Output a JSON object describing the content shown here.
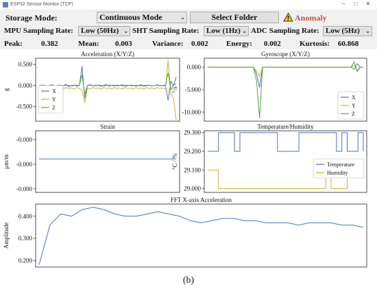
{
  "window": {
    "title": "ESP32 Sensor Monitor (TCP)"
  },
  "controls": {
    "storage_label": "Storage Mode:",
    "storage_value": "Continuous Mode",
    "select_folder": "Select Folder",
    "anomaly_label": "Anomaly",
    "mpu_label": "MPU Sampling Rate:",
    "mpu_value": "Low (50Hz)",
    "sht_label": "SHT Sampling Rate:",
    "sht_value": "Low (1Hz)",
    "adc_label": "ADC Sampling Rate:",
    "adc_value": "Low (5Hz)"
  },
  "stats": {
    "peak_label": "Peak:",
    "peak": "0.382",
    "mean_label": "Mean:",
    "mean": "0.003",
    "variance_label": "Variance:",
    "variance": "0.002",
    "energy_label": "Energy:",
    "energy": "0.002",
    "kurtosis_label": "Kurtosis:",
    "kurtosis": "60.868"
  },
  "colors": {
    "blue": "#4c72b0",
    "yellow": "#ccb22c",
    "green": "#55a24a"
  },
  "caption": "(b)",
  "chart_data": [
    {
      "type": "line",
      "title": "Acceleration (X/Y/Z)",
      "ylabel": "g",
      "ylim": [
        -0.85,
        0.65
      ],
      "yticks": [
        "0.500",
        "0.000",
        "-0.500"
      ],
      "ytick_values": [
        0.5,
        0.0,
        -0.5
      ],
      "legend": [
        "X",
        "Y",
        "Z"
      ],
      "legend_position": "center-left",
      "series": [
        {
          "name": "X",
          "values": [
            0.0,
            -0.02,
            0.01,
            -0.01,
            0.0,
            0.02,
            -0.02,
            0.0,
            0.01,
            -0.01,
            0.03,
            -0.03,
            0.0,
            0.01,
            -0.01,
            0.0,
            0.45,
            -0.3,
            0.0,
            0.02,
            -0.01,
            0.0,
            0.01,
            -0.02,
            0.0,
            0.02,
            -0.01,
            0.0,
            0.01,
            -0.01,
            0.0,
            0.02,
            -0.02,
            0.0,
            0.01,
            0.0,
            -0.01,
            0.0,
            0.02,
            -0.02,
            0.0,
            0.01,
            -0.01,
            0.0,
            0.02,
            -0.01,
            0.0,
            0.01,
            -0.35,
            0.1,
            0.0,
            0.2
          ]
        },
        {
          "name": "Y",
          "values": [
            -0.06,
            -0.08,
            -0.05,
            -0.07,
            -0.06,
            -0.09,
            -0.05,
            -0.07,
            -0.06,
            -0.08,
            -0.05,
            -0.07,
            -0.06,
            -0.08,
            -0.05,
            -0.07,
            -0.12,
            -0.4,
            -0.06,
            -0.08,
            -0.05,
            -0.07,
            -0.06,
            -0.09,
            -0.05,
            -0.07,
            -0.06,
            -0.08,
            -0.05,
            -0.07,
            -0.06,
            -0.08,
            -0.05,
            -0.07,
            -0.06,
            -0.08,
            -0.05,
            -0.07,
            -0.06,
            -0.08,
            -0.05,
            -0.07,
            -0.06,
            -0.08,
            -0.05,
            -0.07,
            -0.06,
            -0.08,
            0.6,
            -0.2,
            -0.3,
            -0.82
          ]
        },
        {
          "name": "Z",
          "values": [
            0.0,
            0.01,
            0.0,
            -0.01,
            0.01,
            0.0,
            -0.01,
            0.01,
            0.0,
            -0.01,
            0.01,
            0.0,
            -0.01,
            0.0,
            0.01,
            0.0,
            0.25,
            -0.2,
            0.0,
            0.01,
            0.0,
            -0.01,
            0.01,
            0.0,
            -0.01,
            0.0,
            0.01,
            0.0,
            -0.01,
            0.01,
            0.0,
            -0.01,
            0.0,
            0.01,
            0.0,
            -0.01,
            0.01,
            0.0,
            -0.01,
            0.0,
            0.01,
            0.0,
            -0.01,
            0.0,
            0.01,
            0.0,
            -0.01,
            0.0,
            0.3,
            -0.1,
            0.0,
            0.05
          ]
        }
      ]
    },
    {
      "type": "line",
      "title": "Gyroscope (X/Y/Z)",
      "ylabel": "°/s",
      "ylim": [
        -12.0,
        2.0
      ],
      "yticks": [
        "0.000",
        "-5.000",
        "-10.000"
      ],
      "ytick_values": [
        0.0,
        -5.0,
        -10.0
      ],
      "legend": [
        "X",
        "Y",
        "Z"
      ],
      "legend_position": "lower-right",
      "series": [
        {
          "name": "X",
          "values": [
            0.0,
            0.0,
            0.0,
            0.0,
            0.0,
            0.0,
            0.0,
            0.0,
            0.0,
            0.0,
            0.0,
            0.0,
            0.0,
            0.0,
            0.0,
            0.0,
            -1.5,
            -4.5,
            0.0,
            0.0,
            0.0,
            0.0,
            0.0,
            0.0,
            0.0,
            0.0,
            0.0,
            0.0,
            0.0,
            0.0,
            0.0,
            0.0,
            0.0,
            0.0,
            0.0,
            0.0,
            0.0,
            0.0,
            0.0,
            0.0,
            0.0,
            0.0,
            0.0,
            0.0,
            0.0,
            0.0,
            0.0,
            0.0,
            -0.5,
            0.8,
            0.0,
            0.0
          ]
        },
        {
          "name": "Y",
          "values": [
            0.0,
            0.0,
            0.0,
            0.0,
            0.0,
            0.0,
            0.0,
            0.0,
            0.0,
            0.0,
            0.0,
            0.0,
            0.0,
            0.0,
            0.0,
            0.0,
            -0.8,
            -2.0,
            0.0,
            0.0,
            0.0,
            0.0,
            0.0,
            0.0,
            0.0,
            0.0,
            0.0,
            0.0,
            0.0,
            0.0,
            0.0,
            0.0,
            0.0,
            0.0,
            0.0,
            0.0,
            0.0,
            0.0,
            0.0,
            0.0,
            0.0,
            0.0,
            0.0,
            0.0,
            0.0,
            0.0,
            0.0,
            0.0,
            0.4,
            -0.6,
            0.0,
            0.0
          ]
        },
        {
          "name": "Z",
          "values": [
            0.0,
            0.0,
            0.0,
            0.0,
            0.0,
            0.0,
            0.0,
            0.0,
            0.0,
            0.0,
            0.0,
            0.0,
            0.0,
            0.0,
            0.0,
            0.0,
            -3.0,
            -11.3,
            0.0,
            0.0,
            0.0,
            0.0,
            0.0,
            0.0,
            0.0,
            0.0,
            0.0,
            0.0,
            0.0,
            0.0,
            0.0,
            0.0,
            0.0,
            0.0,
            0.0,
            0.0,
            0.0,
            0.0,
            0.0,
            0.0,
            0.0,
            0.0,
            0.0,
            0.0,
            0.0,
            0.0,
            0.0,
            0.0,
            1.2,
            -1.0,
            0.0,
            0.0
          ]
        }
      ]
    },
    {
      "type": "line",
      "title": "Strain",
      "ylabel": "μm/m",
      "ylim": [
        -0.06,
        0.01
      ],
      "yticks": [
        "-0.000",
        "-0.000",
        "-0.000"
      ],
      "ytick_values": [
        0.0,
        -0.028,
        -0.056
      ],
      "series": [
        {
          "name": "",
          "values": [
            -0.022,
            -0.022
          ]
        }
      ]
    },
    {
      "type": "line",
      "title": "Temperature/Humidity",
      "ylabel": "°C / %",
      "ylim": [
        28.98,
        29.31
      ],
      "yticks": [
        "29.300",
        "29.200",
        "29.100",
        "29.000"
      ],
      "ytick_values": [
        29.3,
        29.2,
        29.1,
        29.0
      ],
      "legend": [
        "Temperature",
        "Humidity"
      ],
      "legend_position": "center-right",
      "series": [
        {
          "name": "Temperature",
          "values": [
            29.2,
            29.2,
            29.3,
            29.3,
            29.3,
            29.2,
            29.3,
            29.3,
            29.3,
            29.3,
            29.3,
            29.3,
            29.3,
            29.2,
            29.2,
            29.2,
            29.2,
            29.3,
            29.3,
            29.3,
            29.3,
            29.3,
            29.3,
            29.3,
            29.2,
            29.3,
            29.2,
            29.2,
            29.3,
            29.2
          ]
        },
        {
          "name": "Humidity",
          "values": [
            29.1,
            29.1,
            29.0,
            29.0,
            29.0,
            29.0,
            29.0,
            29.0,
            29.0,
            29.0,
            29.0,
            29.0,
            29.0,
            29.0,
            29.0,
            29.0,
            29.0,
            29.0,
            29.0,
            29.0,
            29.0,
            29.0,
            29.1,
            29.0,
            29.0,
            29.0,
            29.1,
            29.1,
            29.1,
            29.1
          ]
        }
      ]
    },
    {
      "type": "line",
      "title": "FFT X-axis Acceleration",
      "ylabel": "Amplitude",
      "ylim": [
        0.17,
        0.455
      ],
      "yticks": [
        "0.400",
        "0.300",
        "0.200"
      ],
      "ytick_values": [
        0.4,
        0.3,
        0.2
      ],
      "series": [
        {
          "name": "",
          "values": [
            0.18,
            0.36,
            0.41,
            0.4,
            0.43,
            0.44,
            0.43,
            0.41,
            0.4,
            0.4,
            0.41,
            0.42,
            0.41,
            0.4,
            0.38,
            0.37,
            0.38,
            0.39,
            0.39,
            0.38,
            0.38,
            0.37,
            0.37,
            0.37,
            0.36,
            0.37,
            0.37,
            0.37,
            0.36,
            0.36,
            0.35
          ]
        }
      ]
    }
  ]
}
